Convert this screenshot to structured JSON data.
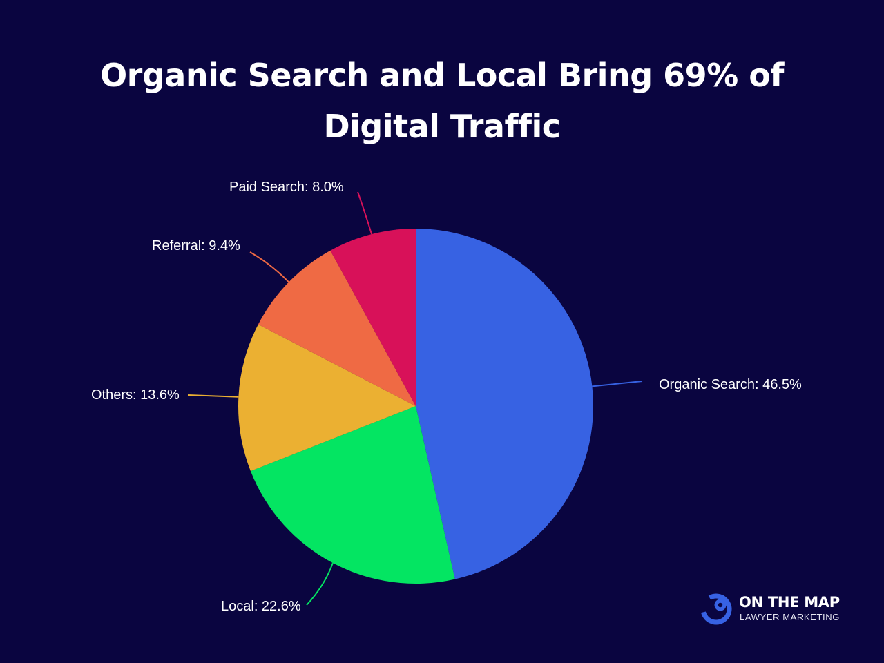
{
  "chart_data": {
    "type": "pie",
    "title": "Organic Search and Local Bring 69% of Digital Traffic",
    "title_lines": [
      "Organic Search and Local Bring 69% of",
      "Digital Traffic"
    ],
    "start_angle_deg": 0,
    "direction": "clockwise",
    "slices": [
      {
        "name": "Organic Search",
        "value": 46.5,
        "label": "Organic Search: 46.5%",
        "color": "#3762e3"
      },
      {
        "name": "Local",
        "value": 22.6,
        "label": "Local: 22.6%",
        "color": "#04e562"
      },
      {
        "name": "Others",
        "value": 13.6,
        "label": "Others: 13.6%",
        "color": "#ebb032"
      },
      {
        "name": "Referral",
        "value": 9.4,
        "label": "Referral: 9.4%",
        "color": "#ef6a44"
      },
      {
        "name": "Paid Search",
        "value": 8.0,
        "label": "Paid Search: 8.0%",
        "color": "#d81159"
      }
    ]
  },
  "background_color": "#0a0540",
  "logo": {
    "name": "ON THE MAP",
    "tagline": "LAWYER MARKETING",
    "color": "#3762e3"
  }
}
